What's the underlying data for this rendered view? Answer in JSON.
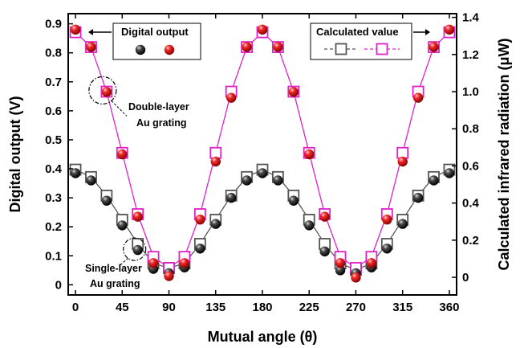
{
  "chart_data": {
    "type": "scatter",
    "xlabel": "Mutual angle (θ)",
    "ylabel": "Digital output (V)",
    "y2label": "Calculated infrared radiation (μW)",
    "xlim": [
      -7,
      367
    ],
    "ylim": [
      -0.035,
      0.935
    ],
    "y2lim": [
      -0.095,
      1.42
    ],
    "xticks": [
      0,
      45,
      90,
      135,
      180,
      225,
      270,
      315,
      360
    ],
    "yticks": [
      0,
      0.1,
      0.2,
      0.3,
      0.4,
      0.5,
      0.6,
      0.7,
      0.8,
      0.9
    ],
    "y2ticks": [
      0,
      0.2,
      0.4,
      0.6,
      0.8,
      1.0,
      1.2,
      1.4
    ],
    "x": [
      0,
      15,
      30,
      45,
      60,
      75,
      90,
      105,
      120,
      135,
      150,
      165,
      180,
      195,
      210,
      225,
      240,
      255,
      270,
      285,
      300,
      315,
      330,
      345,
      360
    ],
    "measured": [
      {
        "name": "Digital output",
        "legend_group": "Digital output",
        "color": "#1a1a1a",
        "axis": "left",
        "values": [
          0.385,
          0.36,
          0.29,
          0.205,
          0.12,
          0.055,
          0.04,
          0.06,
          0.125,
          0.21,
          0.3,
          0.36,
          0.385,
          0.36,
          0.29,
          0.205,
          0.115,
          0.05,
          0.04,
          0.06,
          0.125,
          0.21,
          0.3,
          0.36,
          0.385
        ]
      },
      {
        "name": "Digital output",
        "legend_group": "Digital output",
        "color": "#e8141c",
        "axis": "left",
        "values": [
          0.88,
          0.82,
          0.665,
          0.45,
          0.235,
          0.075,
          0.03,
          0.075,
          0.225,
          0.425,
          0.645,
          0.82,
          0.88,
          0.82,
          0.665,
          0.45,
          0.235,
          0.075,
          0.025,
          0.075,
          0.225,
          0.425,
          0.645,
          0.82,
          0.88
        ]
      }
    ],
    "calculated": [
      {
        "name": "Calculated value",
        "legend_group": "Calculated value",
        "color": "#555555",
        "axis": "right",
        "values": [
          0.58,
          0.54,
          0.44,
          0.31,
          0.18,
          0.075,
          0.05,
          0.075,
          0.18,
          0.31,
          0.44,
          0.54,
          0.58,
          0.54,
          0.44,
          0.31,
          0.18,
          0.075,
          0.04,
          0.075,
          0.18,
          0.31,
          0.44,
          0.54,
          0.58
        ]
      },
      {
        "name": "Calculated value",
        "legend_group": "Calculated value",
        "color": "#e020c8",
        "axis": "right",
        "values": [
          1.32,
          1.24,
          1.0,
          0.67,
          0.34,
          0.11,
          0.05,
          0.11,
          0.34,
          0.67,
          1.0,
          1.24,
          1.32,
          1.24,
          1.0,
          0.67,
          0.34,
          0.11,
          0.05,
          0.11,
          0.34,
          0.67,
          1.0,
          1.24,
          1.32
        ]
      }
    ],
    "legend_left": {
      "label": "Digital output",
      "position": "top-left"
    },
    "legend_right": {
      "label": "Calculated value",
      "position": "top-right"
    },
    "annotations": [
      {
        "line1": "Double-layer",
        "line2": "Au grating",
        "x": 30,
        "y": 0.665
      },
      {
        "line1": "Single-layer",
        "line2": "Au grating",
        "x": 60,
        "y": 0.12
      }
    ]
  }
}
